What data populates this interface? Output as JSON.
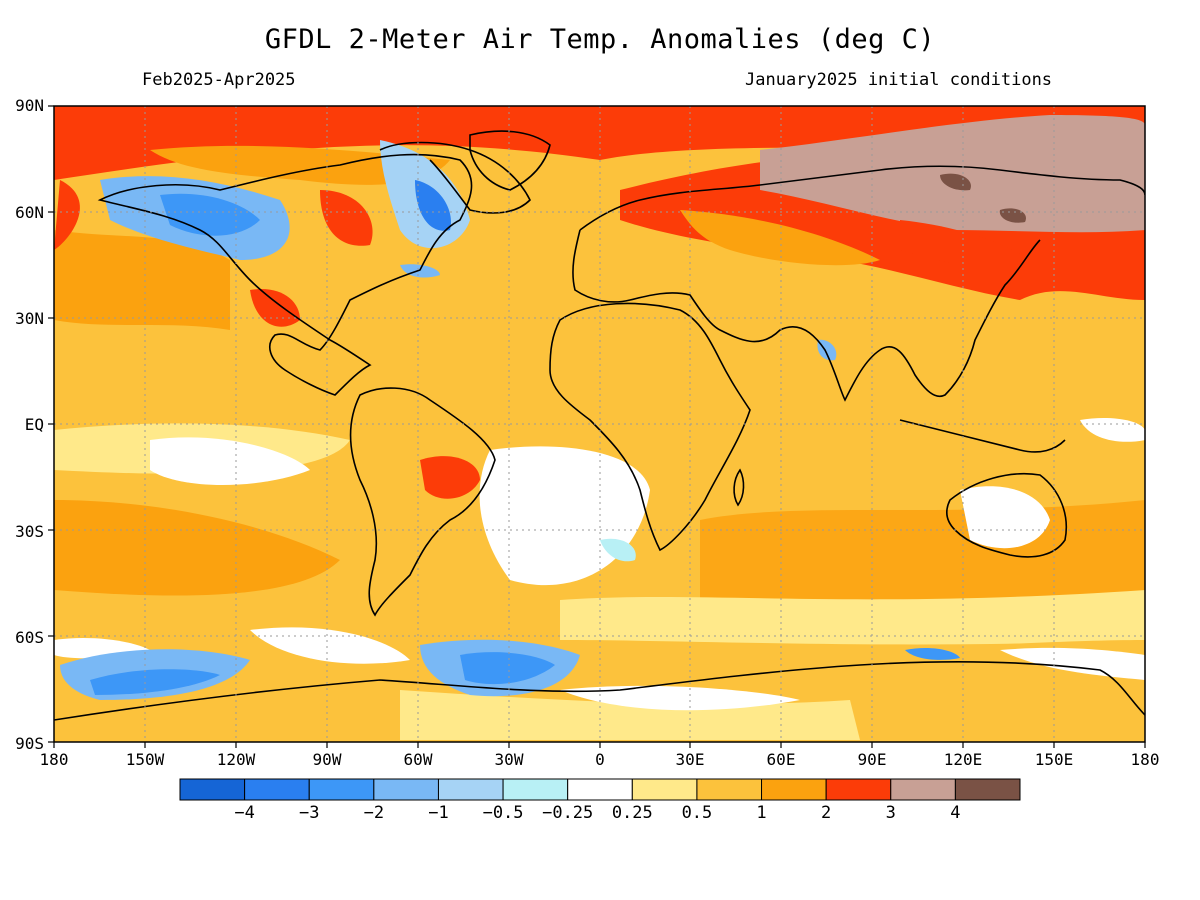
{
  "title": "GFDL 2-Meter Air Temp. Anomalies (deg C)",
  "subtitle_left": "Feb2025-Apr2025",
  "subtitle_right": "January2025 initial conditions",
  "lat_labels": [
    "90N",
    "60N",
    "30N",
    "EQ",
    "30S",
    "60S",
    "90S"
  ],
  "lon_labels": [
    "180",
    "150W",
    "120W",
    "90W",
    "60W",
    "30W",
    "0",
    "30E",
    "60E",
    "90E",
    "120E",
    "150E",
    "180"
  ],
  "colorbar": {
    "colors": [
      "#1565d6",
      "#2a7ff0",
      "#3d97f7",
      "#79b8f5",
      "#a6d3f5",
      "#b8f0f5",
      "#ffffff",
      "#ffe98a",
      "#fcc23c",
      "#fba20f",
      "#fc3c08",
      "#c8a095",
      "#7a5245"
    ],
    "labels": [
      "-4",
      "-3",
      "-2",
      "-1",
      "-0.5",
      "-0.25",
      "0.25",
      "0.5",
      "1",
      "2",
      "3",
      "4"
    ]
  },
  "palette": {
    "ocean_base": "#fcc23c",
    "land_outline": "#000000",
    "grid": "#9a9a9a"
  }
}
